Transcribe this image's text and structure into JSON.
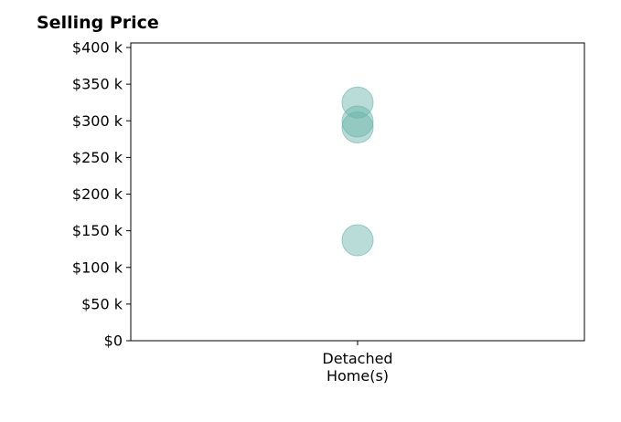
{
  "chart_data": {
    "type": "scatter",
    "title": "Selling Price",
    "categories": [
      "Detached Home(s)"
    ],
    "category_lines": [
      [
        "Detached",
        "Home(s)"
      ]
    ],
    "xlabel": "",
    "ylabel": "",
    "ylim": [
      0,
      400000
    ],
    "y_ticks": [
      0,
      50000,
      100000,
      150000,
      200000,
      250000,
      300000,
      350000,
      400000
    ],
    "y_tick_labels": [
      "$0",
      "$50 k",
      "$100 k",
      "$150 k",
      "$200 k",
      "$250 k",
      "$300 k",
      "$350 k",
      "$400 k"
    ],
    "grid": false,
    "series": [
      {
        "category": "Detached Home(s)",
        "values": [
          325000,
          299000,
          291000,
          137000
        ]
      }
    ],
    "marker_color": "#66b2a9",
    "marker_opacity": 0.45
  }
}
